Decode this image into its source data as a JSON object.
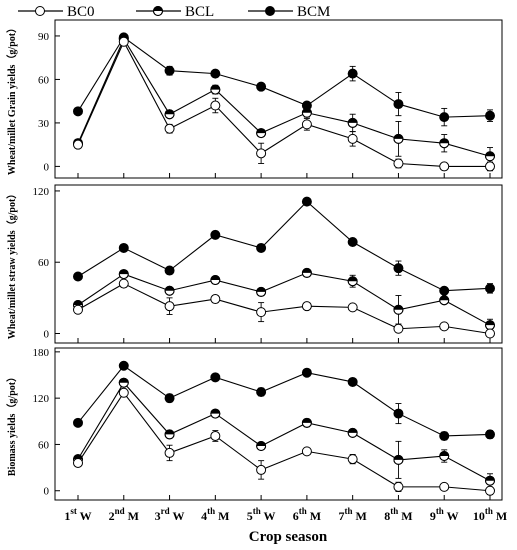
{
  "chart_data": {
    "type": "line",
    "categories": [
      {
        "num": "1",
        "sup": "st",
        "letter": "W"
      },
      {
        "num": "2",
        "sup": "nd",
        "letter": "M"
      },
      {
        "num": "3",
        "sup": "rd",
        "letter": "W"
      },
      {
        "num": "4",
        "sup": "th",
        "letter": "M"
      },
      {
        "num": "5",
        "sup": "th",
        "letter": "W"
      },
      {
        "num": "6",
        "sup": "th",
        "letter": "M"
      },
      {
        "num": "7",
        "sup": "th",
        "letter": "M"
      },
      {
        "num": "8",
        "sup": "th",
        "letter": "M"
      },
      {
        "num": "9",
        "sup": "th",
        "letter": "W"
      },
      {
        "num": "10",
        "sup": "th",
        "letter": "M"
      }
    ],
    "xlabel": "Crop season",
    "legend": {
      "position": "top",
      "entries": [
        {
          "name": "BC0",
          "marker": "open"
        },
        {
          "name": "BCL",
          "marker": "half"
        },
        {
          "name": "BCM",
          "marker": "filled"
        }
      ]
    },
    "panels": [
      {
        "ylabel": "Wheat/millet Grain yields（g/pot）",
        "ylim": [
          -8,
          101
        ],
        "yticks": [
          0,
          30,
          60,
          90
        ],
        "series": [
          {
            "name": "BC0",
            "values": [
              15,
              86,
              26,
              42,
              9,
              29,
              19,
              2,
              0,
              0
            ],
            "errors": [
              2,
              2,
              3,
              5,
              7,
              4,
              5,
              3,
              2,
              3
            ]
          },
          {
            "name": "BCL",
            "values": [
              16,
              88,
              36,
              53,
              23,
              37,
              30,
              19,
              16,
              7
            ],
            "errors": [
              2,
              2,
              2,
              3,
              2,
              3,
              6,
              12,
              6,
              6
            ]
          },
          {
            "name": "BCM",
            "values": [
              38,
              89,
              66,
              64,
              55,
              42,
              64,
              43,
              34,
              35
            ],
            "errors": [
              1,
              1,
              3,
              2,
              1,
              2,
              5,
              8,
              6,
              4
            ]
          }
        ]
      },
      {
        "ylabel": "Wheat/millet straw yields（g/pot）",
        "ylim": [
          -8,
          125
        ],
        "yticks": [
          0,
          60,
          120
        ],
        "series": [
          {
            "name": "BC0",
            "values": [
              20,
              42,
              23,
              29,
              18,
              23,
              22,
              4,
              6,
              0
            ],
            "errors": [
              3,
              3,
              7,
              3,
              8,
              2,
              2,
              3,
              2,
              2
            ]
          },
          {
            "name": "BCL",
            "values": [
              24,
              50,
              36,
              45,
              35,
              51,
              44,
              20,
              28,
              7
            ],
            "errors": [
              2,
              2,
              2,
              3,
              2,
              3,
              5,
              12,
              2,
              5
            ]
          },
          {
            "name": "BCM",
            "values": [
              48,
              72,
              53,
              83,
              72,
              111,
              77,
              55,
              36,
              38
            ],
            "errors": [
              1,
              2,
              2,
              3,
              3,
              2,
              2,
              6,
              2,
              4
            ]
          }
        ]
      },
      {
        "ylabel": "Biomass yields（g/pot）",
        "ylim": [
          -12,
          185
        ],
        "yticks": [
          0,
          60,
          120,
          180
        ],
        "series": [
          {
            "name": "BC0",
            "values": [
              36,
              127,
              49,
              71,
              27,
              51,
              41,
              5,
              5,
              0
            ],
            "errors": [
              4,
              5,
              10,
              7,
              12,
              4,
              6,
              6,
              3,
              5
            ]
          },
          {
            "name": "BCL",
            "values": [
              41,
              140,
              73,
              100,
              58,
              88,
              75,
              40,
              45,
              13
            ],
            "errors": [
              3,
              3,
              3,
              4,
              3,
              5,
              4,
              24,
              8,
              9
            ]
          },
          {
            "name": "BCM",
            "values": [
              88,
              162,
              120,
              147,
              128,
              153,
              141,
              100,
              71,
              73
            ],
            "errors": [
              2,
              4,
              5,
              4,
              5,
              2,
              4,
              13,
              5,
              5
            ]
          }
        ]
      }
    ]
  }
}
